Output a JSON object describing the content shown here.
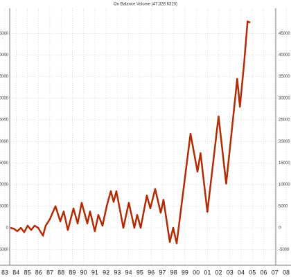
{
  "chart_data": {
    "type": "line",
    "title": "On Balance Volume (47,328.6320)",
    "x": [
      1983.49,
      1983.8,
      1984.11,
      1984.42,
      1984.72,
      1985.03,
      1985.34,
      1985.65,
      1985.96,
      1986.39,
      1986.63,
      1987.0,
      1987.5,
      1987.93,
      1988.23,
      1988.6,
      1989.1,
      1989.47,
      1989.83,
      1990.33,
      1990.57,
      1991.0,
      1991.31,
      1991.68,
      1992.05,
      1992.42,
      1992.67,
      1992.91,
      1993.28,
      1993.53,
      1994.02,
      1994.51,
      1994.76,
      1995.07,
      1995.62,
      1995.93,
      1996.36,
      1996.85,
      1997.1,
      1997.66,
      1997.96,
      1998.27,
      1999.5,
      2000.12,
      2000.39,
      2001.0,
      2001.99,
      2002.67,
      2003.65,
      2003.89,
      2004.26,
      2004.57,
      2004.8
    ],
    "series": [
      {
        "color": "#b32b05",
        "values": [
          0,
          -200,
          -800,
          0,
          -1000,
          500,
          -500,
          500,
          0,
          -1800,
          500,
          2000,
          5000,
          1500,
          3800,
          -500,
          4500,
          1000,
          5800,
          1000,
          3800,
          -800,
          3000,
          500,
          5000,
          8500,
          6000,
          8500,
          3500,
          0,
          5800,
          0,
          3000,
          0,
          7500,
          4500,
          9000,
          3500,
          6500,
          -3300,
          0,
          -3600,
          21800,
          13000,
          17300,
          3700,
          25800,
          10200,
          34500,
          28000,
          38000,
          47800,
          47500
        ]
      }
    ],
    "xlim": [
      1982.57,
      2008.43
    ],
    "xticks": [
      {
        "value": 1983,
        "label": "83"
      },
      {
        "value": 1984,
        "label": "84"
      },
      {
        "value": 1985,
        "label": "85"
      },
      {
        "value": 1986,
        "label": "86"
      },
      {
        "value": 1987,
        "label": "87"
      },
      {
        "value": 1988,
        "label": "88"
      },
      {
        "value": 1989,
        "label": "89"
      },
      {
        "value": 1990,
        "label": "90"
      },
      {
        "value": 1991,
        "label": "91"
      },
      {
        "value": 1992,
        "label": "92"
      },
      {
        "value": 1993,
        "label": "93"
      },
      {
        "value": 1994,
        "label": "94"
      },
      {
        "value": 1995,
        "label": "95"
      },
      {
        "value": 1996,
        "label": "96"
      },
      {
        "value": 1997,
        "label": "97"
      },
      {
        "value": 1998,
        "label": "98"
      },
      {
        "value": 1999,
        "label": "99"
      },
      {
        "value": 2000,
        "label": "00"
      },
      {
        "value": 2001,
        "label": "01"
      },
      {
        "value": 2002,
        "label": "02"
      },
      {
        "value": 2003,
        "label": "03"
      },
      {
        "value": 2004,
        "label": "04"
      },
      {
        "value": 2005,
        "label": "05"
      },
      {
        "value": 2006,
        "label": "06"
      },
      {
        "value": 2007,
        "label": "07"
      },
      {
        "value": 2008,
        "label": "08"
      }
    ],
    "ylim": [
      -8650,
      50800
    ],
    "yticks": [
      -5000,
      0,
      5000,
      10000,
      15000,
      20000,
      25000,
      30000,
      35000,
      40000,
      45000
    ],
    "grid": true
  }
}
